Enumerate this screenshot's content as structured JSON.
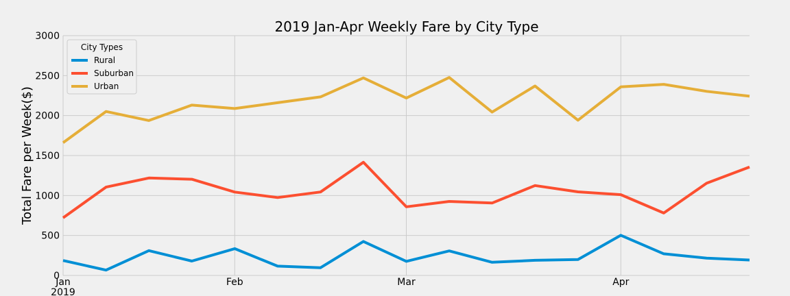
{
  "chart_data": {
    "type": "line",
    "title": "2019 Jan-Apr Weekly Fare by City Type",
    "xlabel": "",
    "ylabel": "Total Fare per Week($)",
    "ylim": [
      0,
      3000
    ],
    "yticks": [
      0,
      500,
      1000,
      1500,
      2000,
      2500,
      3000
    ],
    "x": [
      "2019-01-06",
      "2019-01-13",
      "2019-01-20",
      "2019-01-27",
      "2019-02-03",
      "2019-02-10",
      "2019-02-17",
      "2019-02-24",
      "2019-03-03",
      "2019-03-10",
      "2019-03-17",
      "2019-03-24",
      "2019-03-31",
      "2019-04-07",
      "2019-04-14",
      "2019-04-21",
      "2019-04-28"
    ],
    "xticks": [
      {
        "x": "2019-01-06",
        "label": "Jan",
        "sublabel": "2019"
      },
      {
        "x": "2019-02-03",
        "label": "Feb",
        "sublabel": ""
      },
      {
        "x": "2019-03-03",
        "label": "Mar",
        "sublabel": ""
      },
      {
        "x": "2019-04-07",
        "label": "Apr",
        "sublabel": ""
      }
    ],
    "grid": true,
    "legend": {
      "title": "City Types",
      "placement": "upper-left"
    },
    "series": [
      {
        "name": "Rural",
        "color": "#008fd5",
        "values": [
          187,
          67,
          310,
          180,
          335,
          117,
          97,
          425,
          177,
          307,
          165,
          189,
          199,
          502,
          271,
          217,
          193
        ]
      },
      {
        "name": "Suburban",
        "color": "#fc4f30",
        "values": [
          721,
          1105,
          1219,
          1203,
          1043,
          975,
          1044,
          1416,
          859,
          926,
          906,
          1125,
          1046,
          1011,
          781,
          1154,
          1357
        ]
      },
      {
        "name": "Urban",
        "color": "#e5ae38",
        "values": [
          1661,
          2051,
          1938,
          2131,
          2088,
          2161,
          2234,
          2471,
          2219,
          2476,
          2043,
          2370,
          1942,
          2359,
          2391,
          2303,
          2242
        ]
      }
    ]
  }
}
